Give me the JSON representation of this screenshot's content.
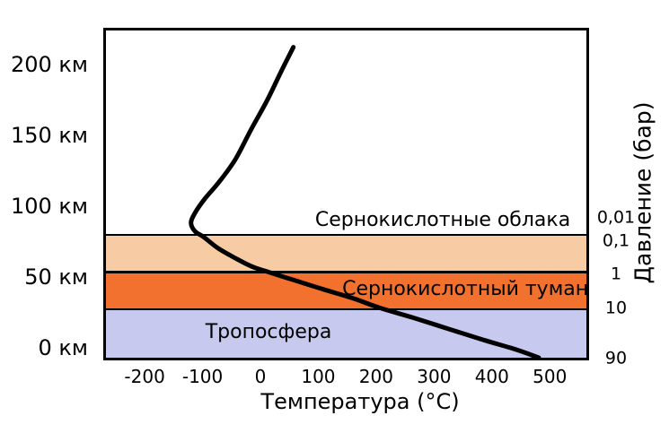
{
  "chart_data": {
    "type": "line",
    "title": "",
    "xlabel": "Температура (°C)",
    "right_axis_label": "Давление (бар)",
    "x_unit": "°C",
    "altitude_unit": "км",
    "pressure_unit": "бар",
    "xlim": [
      -270,
      563
    ],
    "altitude_lim_km": [
      -8,
      225
    ],
    "grid": false,
    "legend": false,
    "x_ticks": [
      {
        "label": "-200",
        "value": -200
      },
      {
        "label": "-100",
        "value": -100
      },
      {
        "label": "0",
        "value": 0
      },
      {
        "label": "100",
        "value": 100
      },
      {
        "label": "200",
        "value": 200
      },
      {
        "label": "300",
        "value": 300
      },
      {
        "label": "400",
        "value": 400
      },
      {
        "label": "500",
        "value": 500
      }
    ],
    "altitude_ticks": [
      {
        "label": "0 км",
        "alt_km": 0
      },
      {
        "label": "50 км",
        "alt_km": 50
      },
      {
        "label": "100 км",
        "alt_km": 100
      },
      {
        "label": "150 км",
        "alt_km": 150
      },
      {
        "label": "200 км",
        "alt_km": 200
      }
    ],
    "pressure_ticks": [
      {
        "label": "0,01",
        "alt_km": 91.5
      },
      {
        "label": "0,1",
        "alt_km": 75.1
      },
      {
        "label": "1",
        "alt_km": 51.6
      },
      {
        "label": "10",
        "alt_km": 27.6
      },
      {
        "label": "90",
        "alt_km": -7.8
      }
    ],
    "bands": [
      {
        "id": "clouds",
        "label": "Сернокислотные облака",
        "color": "#F7CBA4",
        "alt_from_km": 53.2,
        "alt_to_km": 79.5,
        "label_anchor": {
          "temp_c": 315,
          "alt_km": 89.6
        }
      },
      {
        "id": "fog",
        "label": "Сернокислотный туман",
        "color": "#F2712F",
        "alt_from_km": 27.0,
        "alt_to_km": 53.2,
        "label_anchor": {
          "temp_c": 354,
          "alt_km": 40.9
        }
      },
      {
        "id": "troposphere",
        "label": "Тропосфера",
        "color": "#C7C9EE",
        "alt_from_km": -7.8,
        "alt_to_km": 27.0,
        "label_anchor": {
          "temp_c": 14,
          "alt_km": 10.5
        }
      }
    ],
    "series": [
      {
        "name": "temperature-profile",
        "color": "#000000",
        "points_temp_alt": [
          [
            57,
            212
          ],
          [
            36,
            195
          ],
          [
            11,
            174
          ],
          [
            -16,
            154
          ],
          [
            -43,
            133
          ],
          [
            -71,
            117
          ],
          [
            -96,
            105
          ],
          [
            -113,
            95
          ],
          [
            -120,
            88
          ],
          [
            -113,
            82
          ],
          [
            -98,
            78
          ],
          [
            -73,
            70
          ],
          [
            -43,
            63
          ],
          [
            -14,
            57
          ],
          [
            16,
            53
          ],
          [
            62,
            47
          ],
          [
            109,
            41
          ],
          [
            158,
            35
          ],
          [
            206,
            28
          ],
          [
            264,
            21
          ],
          [
            326,
            13
          ],
          [
            388,
            5
          ],
          [
            442,
            -1.5
          ],
          [
            481,
            -7.2
          ]
        ]
      }
    ]
  }
}
